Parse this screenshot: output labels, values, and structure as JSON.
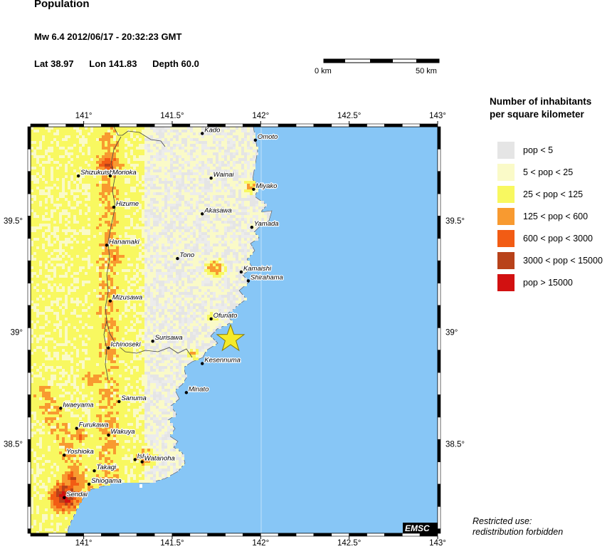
{
  "header": {
    "title": "Population",
    "event": "Mw 6.4  2012/06/17 - 20:32:23 GMT",
    "lat": "Lat 38.97",
    "lon": "Lon 141.83",
    "depth": "Depth  60.0"
  },
  "scale_bar": {
    "start_label": "0 km",
    "end_label": "50 km"
  },
  "map": {
    "lon_range": [
      140.7,
      143.0
    ],
    "lat_range": [
      38.1,
      39.92
    ],
    "top_ticks": [
      "141°",
      "141.5°",
      "142°",
      "142.5°",
      "143°"
    ],
    "bottom_ticks": [
      "141°",
      "141.5°",
      "142°",
      "142.5°",
      "143°"
    ],
    "left_ticks": [
      "39.5°",
      "39°",
      "38.5°"
    ],
    "right_ticks": [
      "39.5°",
      "39°",
      "38.5°"
    ],
    "epicenter": {
      "lat": 38.97,
      "lon": 141.83
    },
    "cities": [
      {
        "name": "Kado",
        "lon": 141.67,
        "lat": 39.89
      },
      {
        "name": "Omoto",
        "lon": 141.97,
        "lat": 39.86
      },
      {
        "name": "Shizukuishi",
        "lon": 140.97,
        "lat": 39.7
      },
      {
        "name": "Morioka",
        "lon": 141.15,
        "lat": 39.7
      },
      {
        "name": "Wainai",
        "lon": 141.72,
        "lat": 39.69
      },
      {
        "name": "Miyako",
        "lon": 141.96,
        "lat": 39.64
      },
      {
        "name": "Hizume",
        "lon": 141.17,
        "lat": 39.56
      },
      {
        "name": "Akasawa",
        "lon": 141.67,
        "lat": 39.53
      },
      {
        "name": "Yamada",
        "lon": 141.95,
        "lat": 39.47
      },
      {
        "name": "Hanamaki",
        "lon": 141.13,
        "lat": 39.39
      },
      {
        "name": "Tono",
        "lon": 141.53,
        "lat": 39.33
      },
      {
        "name": "Kamaishi",
        "lon": 141.89,
        "lat": 39.27
      },
      {
        "name": "Shirahama",
        "lon": 141.93,
        "lat": 39.23
      },
      {
        "name": "Mizusawa",
        "lon": 141.15,
        "lat": 39.14
      },
      {
        "name": "Ofunato",
        "lon": 141.72,
        "lat": 39.06
      },
      {
        "name": "Surisawa",
        "lon": 141.39,
        "lat": 38.96
      },
      {
        "name": "Ichinoseki",
        "lon": 141.14,
        "lat": 38.93
      },
      {
        "name": "Kesennuma",
        "lon": 141.67,
        "lat": 38.86
      },
      {
        "name": "Minato",
        "lon": 141.58,
        "lat": 38.73
      },
      {
        "name": "Sanuma",
        "lon": 141.2,
        "lat": 38.69
      },
      {
        "name": "Iwaeyama",
        "lon": 140.87,
        "lat": 38.66
      },
      {
        "name": "Furukawa",
        "lon": 140.96,
        "lat": 38.57
      },
      {
        "name": "Wakuya",
        "lon": 141.14,
        "lat": 38.54
      },
      {
        "name": "Ishi",
        "lon": 141.29,
        "lat": 38.43
      },
      {
        "name": "Watanoha",
        "lon": 141.33,
        "lat": 38.42
      },
      {
        "name": "Yoshioka",
        "lon": 140.89,
        "lat": 38.45
      },
      {
        "name": "Takagi",
        "lon": 141.06,
        "lat": 38.38
      },
      {
        "name": "Shiogama",
        "lon": 141.03,
        "lat": 38.32
      },
      {
        "name": "Sendai",
        "lon": 140.89,
        "lat": 38.26
      }
    ],
    "logo": "EMSC"
  },
  "legend": {
    "title_line1": "Number of inhabitants",
    "title_line2": "per square kilometer",
    "items": [
      {
        "label": "pop < 5",
        "color": "#e5e5e5"
      },
      {
        "label": "5 < pop < 25",
        "color": "#fafac8"
      },
      {
        "label": "25 < pop < 125",
        "color": "#f8f860"
      },
      {
        "label": "125 < pop < 600",
        "color": "#f89a30"
      },
      {
        "label": "600 < pop < 3000",
        "color": "#f25c14"
      },
      {
        "label": "3000 < pop < 15000",
        "color": "#b8421a"
      },
      {
        "label": "pop > 15000",
        "color": "#d21111"
      }
    ]
  },
  "footer": {
    "line1": "Restricted use:",
    "line2": "redistribution forbidden"
  },
  "colors": {
    "sea": "#87c6f6",
    "frame": "#000000",
    "epicenter": "#f5ea2a"
  }
}
